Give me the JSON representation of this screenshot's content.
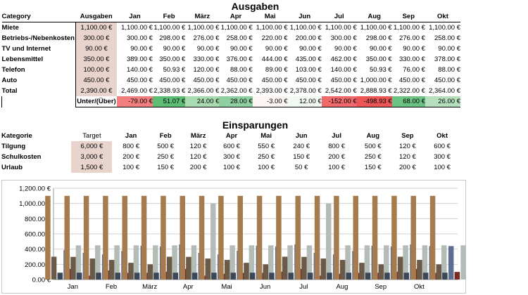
{
  "expenses": {
    "title": "Ausgaben",
    "col_category": "Category",
    "col_budget": "Ausgaben",
    "months": [
      "Jan",
      "Feb",
      "März",
      "Apr",
      "Mai",
      "Jun",
      "Jul",
      "Aug",
      "Sep",
      "Okt"
    ],
    "rows": [
      {
        "label": "Miete",
        "budget": "1,100.00 €",
        "values": [
          "1,100.00 €",
          "1,100.00 €",
          "1,100.00 €",
          "1,100.00 €",
          "1,100.00 €",
          "1,100.00 €",
          "1,100.00 €",
          "1,100.00 €",
          "1,100.00 €",
          "1,100.00 €"
        ]
      },
      {
        "label": "Betriebs-/Nebenkosten",
        "budget": "300.00 €",
        "values": [
          "300.00 €",
          "298.00 €",
          "276.00 €",
          "258.00 €",
          "220.00 €",
          "200.00 €",
          "300.00 €",
          "298.00 €",
          "276.00 €",
          "258.00 €"
        ]
      },
      {
        "label": "TV und Internet",
        "budget": "90.00 €",
        "values": [
          "90.00 €",
          "90.00 €",
          "90.00 €",
          "90.00 €",
          "90.00 €",
          "90.00 €",
          "90.00 €",
          "90.00 €",
          "90.00 €",
          "90.00 €"
        ]
      },
      {
        "label": "Lebensmittel",
        "budget": "350.00 €",
        "values": [
          "389.00 €",
          "350.00 €",
          "330.00 €",
          "376.00 €",
          "444.00 €",
          "435.00 €",
          "462.00 €",
          "350.00 €",
          "330.00 €",
          "378.00 €"
        ]
      },
      {
        "label": "Telefon",
        "budget": "100.00 €",
        "values": [
          "140.00 €",
          "50.93 €",
          "120.00 €",
          "88.00 €",
          "89.00 €",
          "103.00 €",
          "140.00 €",
          "50.93 €",
          "76.00 €",
          "88.00 €"
        ]
      },
      {
        "label": "Auto",
        "budget": "450.00 €",
        "values": [
          "450.00 €",
          "450.00 €",
          "450.00 €",
          "450.00 €",
          "450.00 €",
          "450.00 €",
          "450.00 €",
          "1,000.00 €",
          "450.00 €",
          "450.00 €"
        ]
      },
      {
        "label": "Total",
        "budget": "2,390.00 €",
        "values": [
          "2,469.00 €",
          "2,338.93 €",
          "2,366.00 €",
          "2,362.00 €",
          "2,393.00 €",
          "2,378.00 €",
          "2,542.00 €",
          "2,888.93 €",
          "2,322.00 €",
          "2,364.00 €"
        ]
      }
    ],
    "diff_label": "Unter/(Über)",
    "diff_values": [
      "-79.00 €",
      "51.07 €",
      "24.00 €",
      "28.00 €",
      "-3.00 €",
      "12.00 €",
      "-152.00 €",
      "-498.93 €",
      "68.00 €",
      "26.00 €"
    ],
    "diff_colors": [
      "#f27f7f",
      "#5dbd75",
      "#a9dbb1",
      "#8fd0a0",
      "#fdf4f4",
      "#f2f8f2",
      "#f06a6b",
      "#ec5657",
      "#6cc383",
      "#b6e0bd"
    ]
  },
  "savings": {
    "title": "Einsparungen",
    "col_category": "Kategorie",
    "col_target": "Target",
    "rows": [
      {
        "label": "Tilgung",
        "target": "6,000 €",
        "values": [
          "800 €",
          "500 €",
          "120 €",
          "600 €",
          "550 €",
          "240 €",
          "800 €",
          "500 €",
          "120 €",
          "600 €"
        ]
      },
      {
        "label": "Schulkosten",
        "target": "3,000 €",
        "values": [
          "200 €",
          "250 €",
          "120 €",
          "300 €",
          "250 €",
          "150 €",
          "200 €",
          "250 €",
          "120 €",
          "300 €"
        ]
      },
      {
        "label": "Urlaub",
        "target": "1,500 €",
        "values": [
          "100 €",
          "150 €",
          "200 €",
          "100 €",
          "100 €",
          "50 €",
          "100 €",
          "150 €",
          "200 €",
          "100 €"
        ]
      }
    ]
  },
  "chart_data": {
    "type": "bar",
    "categories": [
      "Jan",
      "",
      "Feb",
      "",
      "März",
      "",
      "Apr",
      "",
      "Mai",
      "",
      "Jun",
      "",
      "Jul",
      "",
      "Aug",
      "",
      "Sep",
      "",
      "Okt",
      "",
      ""
    ],
    "ylim": [
      0,
      1200
    ],
    "ytick_labels": [
      "0.00 €",
      "200.00 €",
      "400.00 €",
      "600.00 €",
      "800.00 €",
      "1,000.00 €",
      "1,200.00 €"
    ],
    "series": [
      {
        "color": "#a67c4e",
        "values": [
          1100,
          1100,
          1100,
          1100,
          1100,
          1100,
          1100,
          1100,
          1100,
          1100,
          1100,
          1100,
          1100,
          1100,
          1100,
          1100,
          1100,
          1100,
          1100,
          1100,
          1100
        ]
      },
      {
        "color": "#6a5a47",
        "values": [
          300,
          298,
          276,
          258,
          220,
          200,
          300,
          298,
          276,
          258,
          220,
          200,
          300,
          298,
          276,
          258,
          220,
          200,
          300,
          258,
          200
        ]
      },
      {
        "color": "#3b4656",
        "values": [
          90,
          90,
          90,
          90,
          90,
          90,
          90,
          90,
          90,
          90,
          90,
          90,
          90,
          90,
          90,
          90,
          90,
          90,
          90,
          90,
          90
        ]
      },
      {
        "color": "#5d6f8f",
        "values": [
          389,
          350,
          330,
          376,
          444,
          435,
          462,
          350,
          330,
          378,
          444,
          435,
          462,
          350,
          330,
          376,
          444,
          435,
          462,
          440,
          440
        ]
      },
      {
        "color": "#7a2b22",
        "values": [
          140,
          51,
          120,
          88,
          89,
          103,
          140,
          51,
          76,
          88,
          89,
          103,
          140,
          51,
          76,
          88,
          89,
          103,
          140,
          88,
          100
        ]
      },
      {
        "color": "#b3bcb6",
        "values": [
          450,
          450,
          450,
          450,
          450,
          450,
          450,
          1000,
          450,
          450,
          450,
          450,
          450,
          1000,
          450,
          450,
          450,
          450,
          450,
          450,
          450
        ]
      }
    ]
  }
}
